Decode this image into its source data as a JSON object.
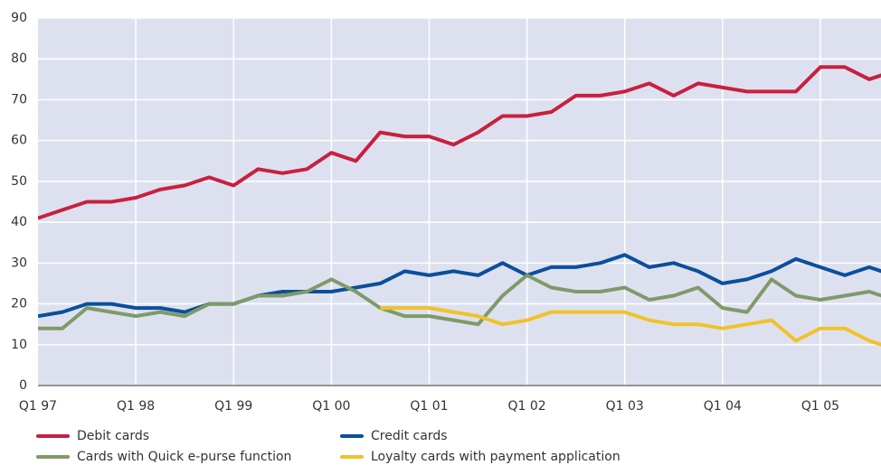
{
  "chart_data": {
    "type": "line",
    "categories": [
      "Q1 97",
      null,
      null,
      null,
      "Q1 98",
      null,
      null,
      null,
      "Q1 99",
      null,
      null,
      null,
      "Q1 00",
      null,
      null,
      null,
      "Q1 01",
      null,
      null,
      null,
      "Q1 02",
      null,
      null,
      null,
      "Q1 03",
      null,
      null,
      null,
      "Q1 04",
      null,
      null,
      null,
      "Q1 05",
      null,
      null,
      null
    ],
    "series": [
      {
        "name": "Debit cards",
        "color": "#c8203f",
        "values": [
          41,
          43,
          45,
          45,
          46,
          48,
          49,
          51,
          49,
          53,
          52,
          53,
          57,
          55,
          62,
          61,
          61,
          59,
          62,
          66,
          66,
          67,
          71,
          71,
          72,
          74,
          71,
          74,
          73,
          72,
          72,
          72,
          78,
          78,
          75,
          77
        ]
      },
      {
        "name": "Credit cards",
        "color": "#0b4f9c",
        "values": [
          17,
          18,
          20,
          20,
          19,
          19,
          18,
          20,
          20,
          22,
          23,
          23,
          23,
          24,
          25,
          28,
          27,
          28,
          27,
          30,
          27,
          29,
          29,
          30,
          32,
          29,
          30,
          28,
          25,
          26,
          28,
          31,
          29,
          27,
          29,
          27
        ]
      },
      {
        "name": "Cards with Quick e-purse function",
        "color": "#7f9a6a",
        "values": [
          14,
          14,
          19,
          18,
          17,
          18,
          17,
          20,
          20,
          22,
          22,
          23,
          26,
          23,
          19,
          17,
          17,
          16,
          15,
          22,
          27,
          24,
          23,
          23,
          24,
          21,
          22,
          24,
          19,
          18,
          26,
          22,
          21,
          22,
          23,
          21
        ]
      },
      {
        "name": "Loyalty cards with payment application",
        "color": "#f0c22b",
        "values": [
          null,
          null,
          null,
          null,
          null,
          null,
          null,
          null,
          null,
          null,
          null,
          null,
          null,
          null,
          19,
          19,
          19,
          18,
          17,
          15,
          16,
          18,
          18,
          18,
          18,
          16,
          15,
          15,
          14,
          15,
          16,
          11,
          14,
          14,
          11,
          9
        ]
      }
    ],
    "ylim": [
      0,
      90
    ],
    "yticks": [
      0,
      10,
      20,
      30,
      40,
      50,
      60,
      70,
      80,
      90
    ],
    "grid": true
  }
}
